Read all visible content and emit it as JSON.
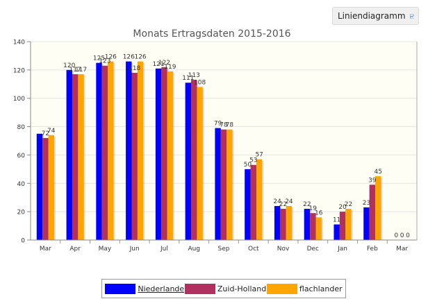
{
  "toggle": {
    "label": "Liniendiagramm",
    "icon": "line-chart-icon"
  },
  "chart_data": {
    "type": "bar",
    "title": "Monats Ertragsdaten 2015-2016",
    "xlabel": "",
    "ylabel": "",
    "ylim": [
      0,
      140
    ],
    "yticks": [
      0,
      20,
      40,
      60,
      80,
      100,
      120,
      140
    ],
    "grid": true,
    "legend_position": "bottom",
    "categories": [
      "Mar",
      "Apr",
      "May",
      "Jun",
      "Jul",
      "Aug",
      "Sep",
      "Oct",
      "Nov",
      "Dec",
      "Jan",
      "Feb",
      "Mar"
    ],
    "series": [
      {
        "name": "Niederlande",
        "color": "#0000ff",
        "values": [
          75,
          120,
          125,
          126,
          121,
          111,
          79,
          50,
          24,
          22,
          11,
          23,
          0
        ],
        "labels": [
          "",
          "120",
          "125",
          "126",
          "121",
          "111",
          "79",
          "50",
          "24",
          "22",
          "11",
          "23",
          "0"
        ]
      },
      {
        "name": "Zuid-Holland",
        "color": "#b03060",
        "values": [
          72,
          117,
          123,
          118,
          122,
          113,
          78,
          53,
          22,
          19,
          20,
          39,
          0
        ],
        "labels": [
          "72",
          "117",
          "123",
          "118",
          "122",
          "113",
          "78",
          "53",
          "22",
          "19",
          "20",
          "39",
          "0"
        ]
      },
      {
        "name": "flachlander",
        "color": "#ffa500",
        "values": [
          74,
          117,
          126,
          126,
          119,
          108,
          78,
          57,
          24,
          16,
          22,
          45,
          0
        ],
        "labels": [
          "74",
          "117",
          "126",
          "126",
          "119",
          "108",
          "78",
          "57",
          "24",
          "16",
          "22",
          "45",
          "0"
        ]
      }
    ]
  }
}
